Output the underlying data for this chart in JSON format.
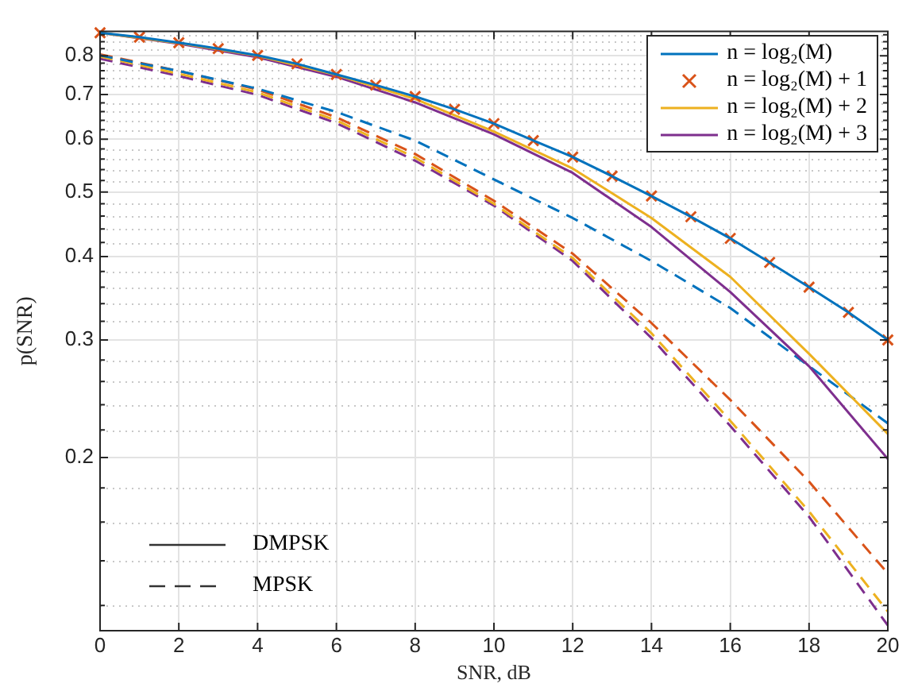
{
  "chart_data": {
    "type": "line",
    "xlabel": "SNR, dB",
    "ylabel": "p(SNR)",
    "x": [
      0,
      1,
      2,
      3,
      4,
      5,
      6,
      7,
      8,
      9,
      10,
      11,
      12,
      13,
      14,
      15,
      16,
      17,
      18,
      19,
      20
    ],
    "xlim": [
      0,
      20
    ],
    "xticks": [
      0,
      2,
      4,
      6,
      8,
      10,
      12,
      14,
      16,
      18,
      20
    ],
    "log": "y",
    "ylim": [
      0.11,
      0.87
    ],
    "yticks": [
      {
        "value": 0.12,
        "label": null
      },
      {
        "value": 0.14,
        "label": null
      },
      {
        "value": 0.16,
        "label": null
      },
      {
        "value": 0.18,
        "label": null
      },
      0.2,
      {
        "value": 0.22,
        "label": null
      },
      {
        "value": 0.24,
        "label": null
      },
      {
        "value": 0.26,
        "label": null
      },
      {
        "value": 0.28,
        "label": null
      },
      0.3,
      {
        "value": 0.32,
        "label": null
      },
      {
        "value": 0.34,
        "label": null
      },
      {
        "value": 0.36,
        "label": null
      },
      {
        "value": 0.38,
        "label": null
      },
      0.4,
      {
        "value": 0.42,
        "label": null
      },
      {
        "value": 0.44,
        "label": null
      },
      {
        "value": 0.46,
        "label": null
      },
      {
        "value": 0.48,
        "label": null
      },
      0.5,
      {
        "value": 0.52,
        "label": null
      },
      {
        "value": 0.54,
        "label": null
      },
      {
        "value": 0.56,
        "label": null
      },
      {
        "value": 0.58,
        "label": null
      },
      0.6,
      {
        "value": 0.62,
        "label": null
      },
      {
        "value": 0.64,
        "label": null
      },
      {
        "value": 0.66,
        "label": null
      },
      {
        "value": 0.68,
        "label": null
      },
      0.7,
      {
        "value": 0.72,
        "label": null
      },
      {
        "value": 0.74,
        "label": null
      },
      {
        "value": 0.76,
        "label": null
      },
      {
        "value": 0.78,
        "label": null
      },
      0.8,
      {
        "value": 0.82,
        "label": null
      },
      {
        "value": 0.84,
        "label": null
      },
      {
        "value": 0.86,
        "label": null
      }
    ],
    "grid": true,
    "legend": "top right",
    "series": [
      {
        "name": "n = log₂(M)",
        "color": "#0072bd",
        "line_style": "solid",
        "marker": "none",
        "values": [
          0.866,
          0.853,
          0.837,
          0.82,
          0.801,
          0.778,
          0.75,
          0.723,
          0.695,
          0.665,
          0.633,
          0.597,
          0.564,
          0.528,
          0.493,
          0.459,
          0.426,
          0.392,
          0.36,
          0.33,
          0.3
        ]
      },
      {
        "name": "n = log₂(M) + 1",
        "type": "scatter",
        "color": "#d95319",
        "marker": "cross",
        "values": [
          0.866,
          0.853,
          0.837,
          0.82,
          0.801,
          0.778,
          0.75,
          0.723,
          0.695,
          0.665,
          0.633,
          0.597,
          0.564,
          0.528,
          0.493,
          0.459,
          0.426,
          0.392,
          0.36,
          0.33,
          0.3
        ]
      },
      {
        "name": "n = log₂(M) + 2",
        "color": "#edb120",
        "line_style": "solid",
        "marker": "none",
        "x": [
          0,
          2,
          4,
          6,
          8,
          10,
          12,
          14,
          16,
          18,
          20
        ],
        "values": [
          0.866,
          0.836,
          0.8,
          0.749,
          0.689,
          0.616,
          0.542,
          0.457,
          0.373,
          0.286,
          0.217
        ]
      },
      {
        "name": "n = log₂(M) + 3",
        "color": "#7e2f8e",
        "line_style": "solid",
        "marker": "none",
        "x": [
          0,
          2,
          4,
          6,
          8,
          10,
          12,
          14,
          16,
          18,
          20
        ],
        "values": [
          0.866,
          0.834,
          0.796,
          0.744,
          0.681,
          0.61,
          0.534,
          0.443,
          0.354,
          0.274,
          0.199
        ]
      },
      {
        "color": "#0072bd",
        "line_style": "dashed",
        "marker": "none",
        "x": [
          0,
          2,
          4,
          6,
          8,
          10,
          12,
          14,
          16,
          18,
          20
        ],
        "values": [
          0.801,
          0.759,
          0.714,
          0.659,
          0.597,
          0.522,
          0.457,
          0.394,
          0.335,
          0.274,
          0.225
        ]
      },
      {
        "color": "#d95319",
        "line_style": "dashed",
        "marker": "none",
        "x": [
          0,
          2,
          4,
          6,
          8,
          10,
          12,
          14,
          16,
          18,
          20
        ],
        "values": [
          0.804,
          0.759,
          0.712,
          0.647,
          0.57,
          0.485,
          0.404,
          0.318,
          0.244,
          0.184,
          0.134
        ]
      },
      {
        "color": "#edb120",
        "line_style": "dashed",
        "marker": "none",
        "x": [
          0,
          2,
          4,
          6,
          8,
          10,
          12,
          14,
          16,
          18,
          20
        ],
        "values": [
          0.798,
          0.752,
          0.705,
          0.64,
          0.563,
          0.48,
          0.398,
          0.307,
          0.227,
          0.166,
          0.1175
        ]
      },
      {
        "color": "#7e2f8e",
        "line_style": "dashed",
        "marker": "none",
        "x": [
          0,
          2,
          4,
          6,
          8,
          10,
          12,
          14,
          16,
          18,
          20
        ],
        "values": [
          0.792,
          0.746,
          0.699,
          0.634,
          0.557,
          0.477,
          0.394,
          0.302,
          0.223,
          0.163,
          0.112
        ]
      }
    ],
    "annotations": [
      "DMPSK",
      "MPSK"
    ]
  }
}
